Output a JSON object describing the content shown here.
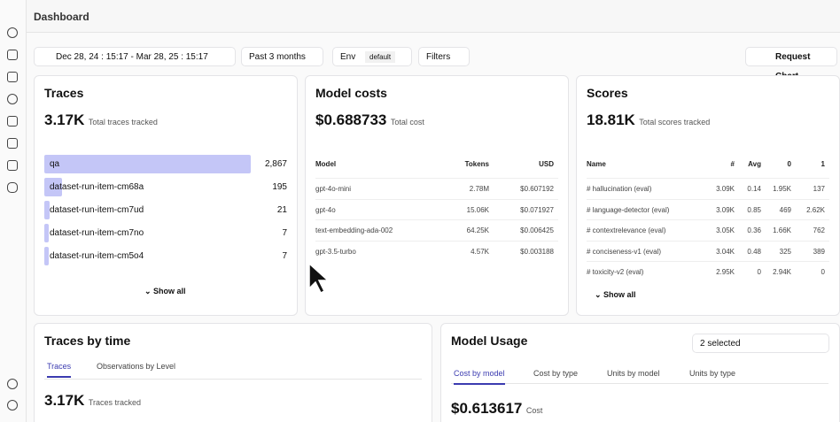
{
  "header": {
    "title": "Dashboard"
  },
  "filters": {
    "date": "Dec 28, 24 : 15:17 - Mar 28, 25 : 15:17",
    "range": "Past 3 months",
    "env": "Env",
    "env_value": "default",
    "filters": "Filters",
    "request": "Request Chart"
  },
  "traces": {
    "title": "Traces",
    "total": "3.17K",
    "total_label": "Total traces tracked",
    "rows": [
      {
        "name": "qa",
        "count": {
          "value": 2867,
          "label": "2,867"
        }
      },
      {
        "name": "dataset-run-item-cm68a",
        "count": 195
      },
      {
        "name": "dataset-run-item-cm7ud",
        "count": 21
      },
      {
        "name": "dataset-run-item-cm7no",
        "count": 7
      },
      {
        "name": "dataset-run-item-cm5o4",
        "count": 7
      }
    ],
    "show_all": "Show all"
  },
  "model_costs": {
    "title": "Model costs",
    "total": "$0.688733",
    "total_label": "Total cost",
    "columns": [
      "Model",
      "Tokens",
      "USD"
    ],
    "rows": [
      [
        "gpt-4o-mini",
        "2.78M",
        "$0.607192"
      ],
      [
        "gpt-4o",
        "15.06K",
        "$0.071927"
      ],
      [
        "text-embedding-ada-002",
        "64.25K",
        "$0.006425"
      ],
      [
        "gpt-3.5-turbo",
        "4.57K",
        "$0.003188"
      ]
    ]
  },
  "scores": {
    "title": "Scores",
    "total": "18.81K",
    "total_label": "Total scores tracked",
    "columns": [
      "Name",
      "#",
      "Avg",
      "0",
      "1"
    ],
    "rows": [
      [
        "# hallucination (eval)",
        "3.09K",
        "0.14",
        "1.95K",
        "137"
      ],
      [
        "# language-detector (eval)",
        "3.09K",
        "0.85",
        "469",
        "2.62K"
      ],
      [
        "# contextrelevance (eval)",
        "3.05K",
        "0.36",
        "1.66K",
        "762"
      ],
      [
        "# conciseness-v1 (eval)",
        "3.04K",
        "0.48",
        "325",
        "389"
      ],
      [
        "# toxicity-v2 (eval)",
        "2.95K",
        "0",
        "2.94K",
        "0"
      ]
    ],
    "show_all": "Show all"
  },
  "traces_by_time": {
    "title": "Traces by time",
    "tabs": [
      "Traces",
      "Observations by Level"
    ],
    "total": "3.17K",
    "total_label": "Traces tracked"
  },
  "model_usage": {
    "title": "Model Usage",
    "select": "2 selected",
    "tabs": [
      "Cost by model",
      "Cost by type",
      "Units by model",
      "Units by type"
    ],
    "total": "$0.613617",
    "total_label": "Cost"
  }
}
